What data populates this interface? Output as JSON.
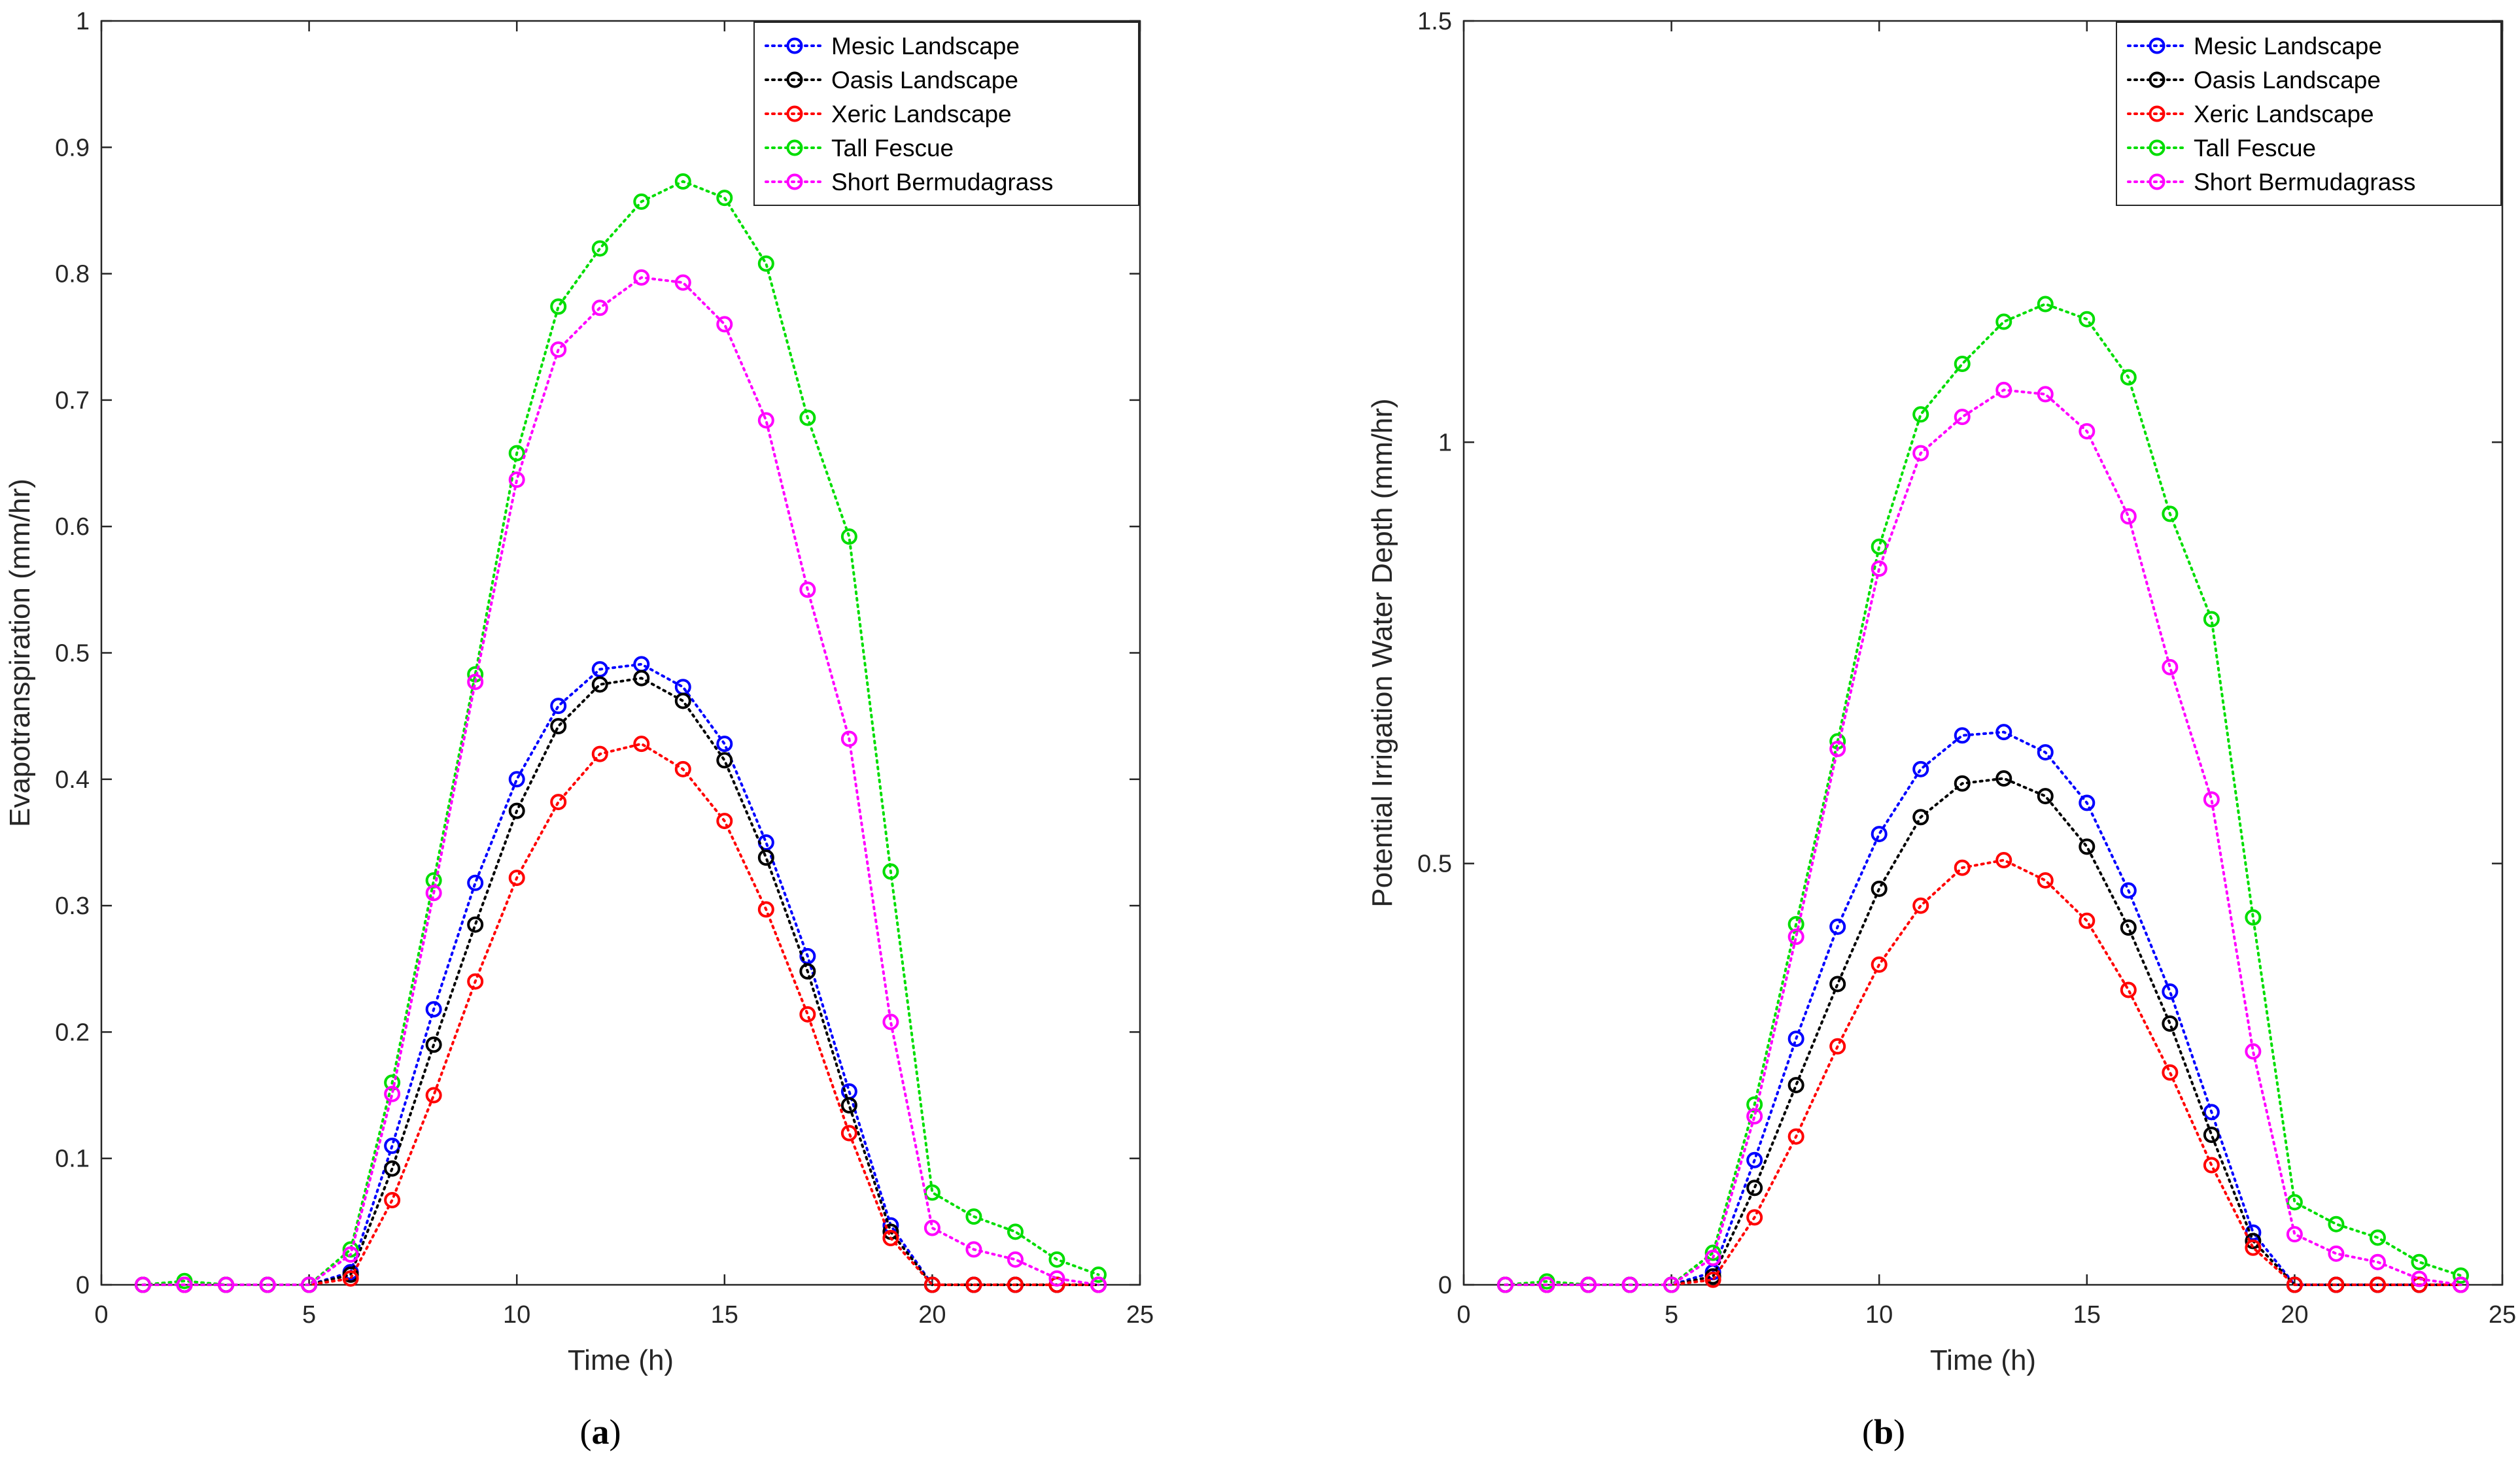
{
  "chart_data": [
    {
      "type": "line",
      "panel_label": "(a)",
      "xlabel": "Time (h)",
      "ylabel": "Evapotranspiration (mm/hr)",
      "xlim": [
        0,
        25
      ],
      "ylim": [
        0,
        1
      ],
      "xticks": [
        0,
        5,
        10,
        15,
        20,
        25
      ],
      "yticks": [
        0,
        0.1,
        0.2,
        0.3,
        0.4,
        0.5,
        0.6,
        0.7,
        0.8,
        0.9,
        1
      ],
      "xtick_labels": [
        "0",
        "5",
        "10",
        "15",
        "20",
        "25"
      ],
      "ytick_labels": [
        "0",
        "0.1",
        "0.2",
        "0.3",
        "0.4",
        "0.5",
        "0.6",
        "0.7",
        "0.8",
        "0.9",
        "1"
      ],
      "grid": false,
      "legend_position": "top-right",
      "x": [
        1,
        2,
        3,
        4,
        5,
        6,
        7,
        8,
        9,
        10,
        11,
        12,
        13,
        14,
        15,
        16,
        17,
        18,
        19,
        20,
        21,
        22,
        23,
        24
      ],
      "series": [
        {
          "name": "Mesic Landscape",
          "color": "#0000ff",
          "values": [
            0,
            0,
            0,
            0,
            0,
            0.01,
            0.11,
            0.218,
            0.318,
            0.4,
            0.458,
            0.487,
            0.491,
            0.473,
            0.428,
            0.35,
            0.26,
            0.153,
            0.047,
            0,
            0,
            0,
            0,
            0
          ]
        },
        {
          "name": "Oasis Landscape",
          "color": "#000000",
          "values": [
            0,
            0,
            0,
            0,
            0,
            0.008,
            0.092,
            0.19,
            0.285,
            0.375,
            0.442,
            0.475,
            0.48,
            0.462,
            0.415,
            0.338,
            0.248,
            0.142,
            0.042,
            0,
            0,
            0,
            0,
            0
          ]
        },
        {
          "name": "Xeric Landscape",
          "color": "#ff0000",
          "values": [
            0,
            0,
            0,
            0,
            0,
            0.005,
            0.067,
            0.15,
            0.24,
            0.322,
            0.382,
            0.42,
            0.428,
            0.408,
            0.367,
            0.297,
            0.214,
            0.12,
            0.037,
            0,
            0,
            0,
            0,
            0
          ]
        },
        {
          "name": "Tall Fescue",
          "color": "#00dd00",
          "values": [
            0,
            0.003,
            0,
            0,
            0,
            0.028,
            0.16,
            0.32,
            0.483,
            0.658,
            0.774,
            0.82,
            0.857,
            0.873,
            0.86,
            0.808,
            0.686,
            0.592,
            0.327,
            0.073,
            0.054,
            0.042,
            0.02,
            0.008
          ]
        },
        {
          "name": "Short Bermudagrass",
          "color": "#ff00ff",
          "values": [
            0,
            0,
            0,
            0,
            0,
            0.024,
            0.151,
            0.31,
            0.477,
            0.637,
            0.74,
            0.773,
            0.797,
            0.793,
            0.76,
            0.684,
            0.55,
            0.432,
            0.208,
            0.045,
            0.028,
            0.02,
            0.005,
            0
          ]
        }
      ]
    },
    {
      "type": "line",
      "panel_label": "(b)",
      "xlabel": "Time (h)",
      "ylabel": "Potential Irrigation Water Depth (mm/hr)",
      "xlim": [
        0,
        25
      ],
      "ylim": [
        0,
        1.5
      ],
      "xticks": [
        0,
        5,
        10,
        15,
        20,
        25
      ],
      "yticks": [
        0,
        0.5,
        1,
        1.5
      ],
      "xtick_labels": [
        "0",
        "5",
        "10",
        "15",
        "20",
        "25"
      ],
      "ytick_labels": [
        "0",
        "0.5",
        "1",
        "1.5"
      ],
      "grid": false,
      "legend_position": "top-right",
      "x": [
        1,
        2,
        3,
        4,
        5,
        6,
        7,
        8,
        9,
        10,
        11,
        12,
        13,
        14,
        15,
        16,
        17,
        18,
        19,
        20,
        21,
        22,
        23,
        24
      ],
      "series": [
        {
          "name": "Mesic Landscape",
          "color": "#0000ff",
          "values": [
            0,
            0,
            0,
            0,
            0,
            0.015,
            0.148,
            0.292,
            0.425,
            0.535,
            0.612,
            0.652,
            0.656,
            0.632,
            0.572,
            0.468,
            0.348,
            0.205,
            0.062,
            0,
            0,
            0,
            0,
            0
          ]
        },
        {
          "name": "Oasis Landscape",
          "color": "#000000",
          "values": [
            0,
            0,
            0,
            0,
            0,
            0.01,
            0.115,
            0.237,
            0.357,
            0.47,
            0.555,
            0.595,
            0.601,
            0.58,
            0.52,
            0.424,
            0.31,
            0.178,
            0.052,
            0,
            0,
            0,
            0,
            0
          ]
        },
        {
          "name": "Xeric Landscape",
          "color": "#ff0000",
          "values": [
            0,
            0,
            0,
            0,
            0,
            0.006,
            0.08,
            0.176,
            0.283,
            0.38,
            0.45,
            0.495,
            0.504,
            0.48,
            0.432,
            0.35,
            0.252,
            0.142,
            0.044,
            0,
            0,
            0,
            0,
            0
          ]
        },
        {
          "name": "Tall Fescue",
          "color": "#00dd00",
          "values": [
            0,
            0.004,
            0,
            0,
            0,
            0.038,
            0.214,
            0.428,
            0.645,
            0.876,
            1.033,
            1.093,
            1.143,
            1.164,
            1.146,
            1.077,
            0.915,
            0.79,
            0.436,
            0.098,
            0.072,
            0.056,
            0.027,
            0.011
          ]
        },
        {
          "name": "Short Bermudagrass",
          "color": "#ff00ff",
          "values": [
            0,
            0,
            0,
            0,
            0,
            0.032,
            0.2,
            0.413,
            0.636,
            0.85,
            0.987,
            1.03,
            1.062,
            1.057,
            1.013,
            0.912,
            0.733,
            0.576,
            0.277,
            0.06,
            0.037,
            0.027,
            0.007,
            0
          ]
        }
      ]
    }
  ]
}
